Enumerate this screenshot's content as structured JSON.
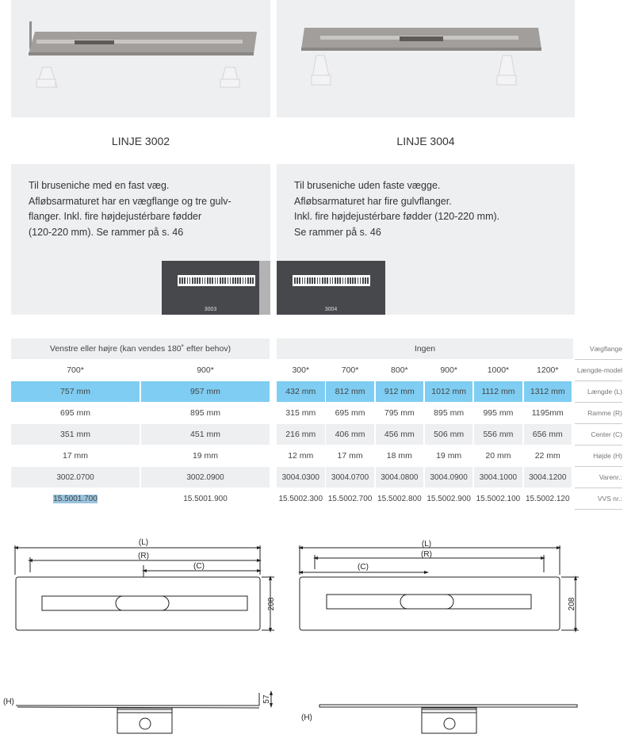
{
  "products": [
    {
      "title": "LINJE 3002",
      "description": [
        "Til bruseniche med en fast væg.",
        "Afløbsarmaturet har en vægflange og tre gulv-",
        "flanger. Inkl. fire højdejustérbare fødder",
        "(120-220 mm). Se rammer på s. 46"
      ],
      "frame_code": "3003"
    },
    {
      "title": "LINJE 3004",
      "description": [
        "Til bruseniche uden faste vægge.",
        "Afløbsarmaturet har fire gulvflanger.",
        "Inkl. fire højdejustérbare fødder (120-220 mm).",
        "Se rammer på s. 46"
      ],
      "frame_code": "3004"
    }
  ],
  "table": {
    "row_labels": [
      "Vægflange",
      "Længde-model",
      "Længde (L)",
      "Ramme (R)",
      "Center (C)",
      "Højde (H)",
      "Varenr.:",
      "VVS nr.:"
    ],
    "groups": [
      {
        "flange": "Venstre eller højre (kan vendes 180˚ efter behov)",
        "columns": [
          {
            "model": "700*",
            "L": "757 mm",
            "R": "695 mm",
            "C": "351 mm",
            "H": "17 mm",
            "varenr": "3002.0700",
            "vvs": "15.5001.700"
          },
          {
            "model": "900*",
            "L": "957 mm",
            "R": "895 mm",
            "C": "451 mm",
            "H": "19 mm",
            "varenr": "3002.0900",
            "vvs": "15.5001.900"
          }
        ]
      },
      {
        "flange": "Ingen",
        "columns": [
          {
            "model": "300*",
            "L": "432 mm",
            "R": "315 mm",
            "C": "216 mm",
            "H": "12 mm",
            "varenr": "3004.0300",
            "vvs": "15.5002.300"
          },
          {
            "model": "700*",
            "L": "812 mm",
            "R": "695 mm",
            "C": "406 mm",
            "H": "17 mm",
            "varenr": "3004.0700",
            "vvs": "15.5002.700"
          },
          {
            "model": "800*",
            "L": "912 mm",
            "R": "795 mm",
            "C": "456 mm",
            "H": "18 mm",
            "varenr": "3004.0800",
            "vvs": "15.5002.800"
          },
          {
            "model": "900*",
            "L": "1012 mm",
            "R": "895 mm",
            "C": "506 mm",
            "H": "19 mm",
            "varenr": "3004.0900",
            "vvs": "15.5002.900"
          },
          {
            "model": "1000*",
            "L": "1112 mm",
            "R": "995 mm",
            "C": "556 mm",
            "H": "20 mm",
            "varenr": "3004.1000",
            "vvs": "15.5002.100"
          },
          {
            "model": "1200*",
            "L": "1312 mm",
            "R": "1195mm",
            "C": "656 mm",
            "H": "22 mm",
            "varenr": "3004.1200",
            "vvs": "15.5002.120"
          }
        ]
      }
    ],
    "highlight_color": "#7fcdf2"
  },
  "drawings": {
    "L": "(L)",
    "R": "(R)",
    "C": "(C)",
    "H": "(H)",
    "width": "208",
    "flange_height": "57"
  }
}
